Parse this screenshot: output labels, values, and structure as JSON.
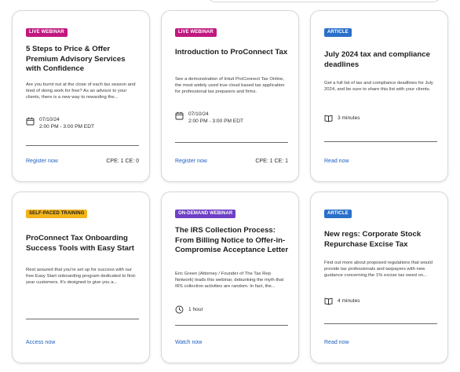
{
  "cards": [
    {
      "badge": "LIVE WEBINAR",
      "badge_bg": "#c1187f",
      "badge_fg": "#ffffff",
      "title": "5 Steps to Price & Offer Premium Advisory Services with Confidence",
      "description": "Are you burnt out at the close of each tax season and tired of doing work for free? As an advisor to your clients, there is a new way to rewarding the...",
      "meta_icon": "calendar-icon",
      "meta_line1": "07/10/24",
      "meta_line2": "2:00 PM - 3:00 PM EDT",
      "link": "Register now",
      "cpe": "CPE: 1 CE: 0"
    },
    {
      "badge": "LIVE WEBINAR",
      "badge_bg": "#c1187f",
      "badge_fg": "#ffffff",
      "title": "Introduction to ProConnect Tax",
      "description": "See a demonstration of Intuit ProConnect Tax Online, the most widely used true cloud based tax application for professional tax preparers and firms.",
      "meta_icon": "calendar-icon",
      "meta_line1": "07/10/24",
      "meta_line2": "2:00 PM - 3:00 PM EDT",
      "link": "Register now",
      "cpe": "CPE: 1 CE: 1"
    },
    {
      "badge": "ARTICLE",
      "badge_bg": "#2a6fc9",
      "badge_fg": "#ffffff",
      "title": "July 2024 tax and compliance deadlines",
      "description": "Get a full list of tax and compliance deadlines for July 2024, and be sure to share this list with your clients.",
      "meta_icon": "book-icon",
      "meta_line1": "3 minutes",
      "meta_line2": "",
      "link": "Read now",
      "cpe": ""
    },
    {
      "badge": "SELF-PACED TRAINING",
      "badge_bg": "#f4b51c",
      "badge_fg": "#1d1d1f",
      "title": "ProConnect Tax Onboarding Success Tools with Easy Start",
      "description": "Rest assured that you're set up for success with our free Easy Start onboarding program dedicated to first-year customers. It's designed to give you a...",
      "meta_icon": "",
      "meta_line1": "",
      "meta_line2": "",
      "link": "Access now",
      "cpe": ""
    },
    {
      "badge": "ON-DEMAND WEBINAR",
      "badge_bg": "#6e3fc4",
      "badge_fg": "#ffffff",
      "title": "The IRS Collection Process: From Billing Notice to Offer-in-Compromise Acceptance Letter",
      "description": "Eric Green (Attorney / Founder of The Tax Rep Network) leads this webinar, debunking the myth that IRS collection activities are random. In fact, the...",
      "meta_icon": "clock-icon",
      "meta_line1": "1 hour",
      "meta_line2": "",
      "link": "Watch now",
      "cpe": ""
    },
    {
      "badge": "ARTICLE",
      "badge_bg": "#2a6fc9",
      "badge_fg": "#ffffff",
      "title": "New regs: Corporate Stock Repurchase Excise Tax",
      "description": "Find out more about proposed regulations that would provide tax professionals and taxpayers with new guidance concerning the 1% excise tax owed on...",
      "meta_icon": "book-icon",
      "meta_line1": "4 minutes",
      "meta_line2": "",
      "link": "Read now",
      "cpe": ""
    }
  ]
}
